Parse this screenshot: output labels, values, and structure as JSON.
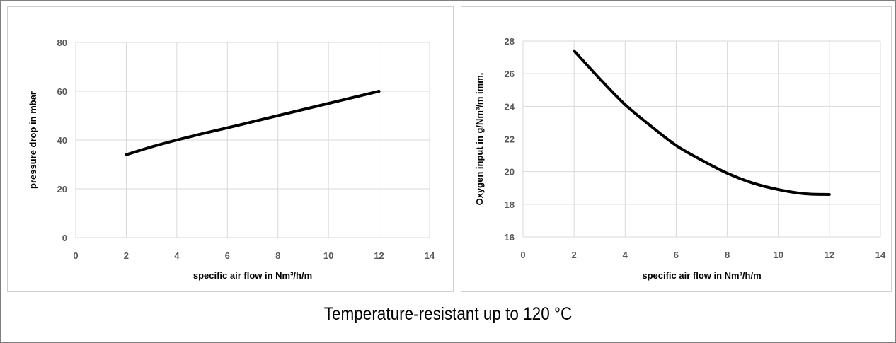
{
  "caption": "Temperature-resistant up to 120 °C",
  "chart_data": [
    {
      "type": "line",
      "title": "",
      "xlabel": "specific air flow in Nm³/h/m",
      "ylabel": "pressure drop  in mbar",
      "xlim": [
        0,
        14
      ],
      "ylim": [
        0,
        80
      ],
      "xticks": [
        0,
        2,
        4,
        6,
        8,
        10,
        12,
        14
      ],
      "yticks": [
        0,
        20,
        40,
        60,
        80
      ],
      "grid": true,
      "legend": "none",
      "line_color": "#000000",
      "grid_color": "#d9d9d9",
      "series": [
        {
          "x": [
            2,
            3,
            4,
            5,
            6,
            7,
            8,
            9,
            10,
            11,
            12
          ],
          "values": [
            34,
            37.2,
            40,
            42.6,
            45,
            47.5,
            50,
            52.5,
            55,
            57.5,
            60
          ]
        }
      ]
    },
    {
      "type": "line",
      "title": "",
      "xlabel": "specific air flow in Nm³/h/m",
      "ylabel": "Oxygen input in g/Nm³/m imm.",
      "xlim": [
        0,
        14
      ],
      "ylim": [
        16,
        28
      ],
      "xticks": [
        0,
        2,
        4,
        6,
        8,
        10,
        12,
        14
      ],
      "yticks": [
        16,
        18,
        20,
        22,
        24,
        26,
        28
      ],
      "grid": true,
      "legend": "none",
      "line_color": "#000000",
      "grid_color": "#d9d9d9",
      "series": [
        {
          "x": [
            2,
            3,
            4,
            5,
            6,
            7,
            8,
            9,
            10,
            11,
            12
          ],
          "values": [
            27.4,
            25.7,
            24.1,
            22.8,
            21.6,
            20.7,
            19.9,
            19.3,
            18.9,
            18.65,
            18.6
          ]
        }
      ]
    }
  ]
}
